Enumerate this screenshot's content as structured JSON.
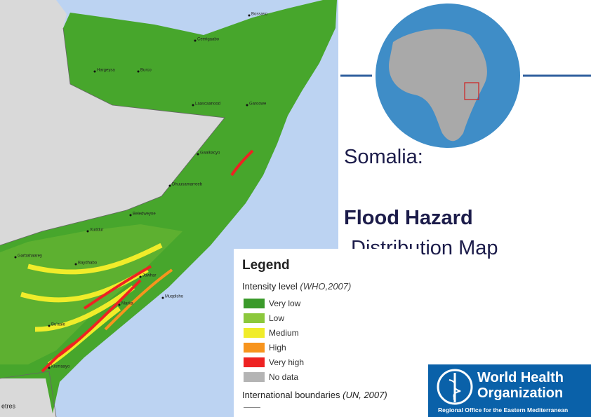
{
  "title": {
    "line1": "Somalia:",
    "line2": "Flood Hazard",
    "line3": "Distribution Map"
  },
  "legend": {
    "heading": "Legend",
    "intensity_label": "Intensity level",
    "intensity_source": "(WHO,2007)",
    "items": [
      {
        "label": "Very low",
        "color": "#3a9a2a"
      },
      {
        "label": "Low",
        "color": "#8cc83c"
      },
      {
        "label": "Medium",
        "color": "#f0ec2a"
      },
      {
        "label": "High",
        "color": "#f7941d"
      },
      {
        "label": "Very high",
        "color": "#ee2222"
      },
      {
        "label": "No data",
        "color": "#b4b4b4"
      }
    ],
    "boundaries_label": "International boundaries",
    "boundaries_source": "(UN, 2007)"
  },
  "map": {
    "cities": [
      "Bossaso",
      "Ceerigaabo",
      "Hargeysa",
      "Burco",
      "Laascaanood",
      "Garoowe",
      "Gaalkacyo",
      "Dhuusamarreeb",
      "Beledweyne",
      "Xuddur",
      "Garbahaarey",
      "Baydhabo",
      "Jowhar",
      "Muqdisho",
      "Marka",
      "Bu'aale",
      "Kismaayo"
    ],
    "scale_text": "etres"
  },
  "logo": {
    "line1": "World Health",
    "line2": "Organization",
    "line3": "Regional Office for the Eastern Mediterranean"
  }
}
